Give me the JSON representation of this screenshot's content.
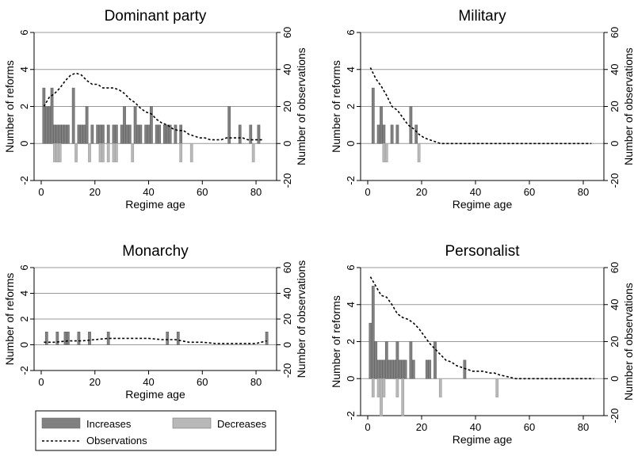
{
  "legend": {
    "items": [
      {
        "label": "Increases",
        "color": "#808080",
        "kind": "box"
      },
      {
        "label": "Decreases",
        "color": "#b8b8b8",
        "kind": "box"
      },
      {
        "label": "Observations",
        "color": "#000000",
        "kind": "dash"
      }
    ]
  },
  "colors": {
    "increase": "#808080",
    "decrease": "#b8b8b8",
    "grid": "#999999",
    "obs_line": "#000000"
  },
  "chart_data": [
    {
      "type": "bar",
      "title": "Dominant party",
      "xlabel": "Regime age",
      "ylabel": "Number of reforms",
      "y2label": "Number of observations",
      "xlim": [
        0,
        85
      ],
      "ylim": [
        -2,
        6
      ],
      "y2lim": [
        -20,
        60
      ],
      "xticks": [
        0,
        20,
        40,
        60,
        80
      ],
      "yticks": [
        -2,
        0,
        2,
        4,
        6
      ],
      "y2ticks": [
        -20,
        0,
        20,
        40,
        60
      ],
      "grid": true,
      "increases": {
        "x": [
          1,
          2,
          3,
          4,
          5,
          6,
          7,
          8,
          9,
          10,
          12,
          14,
          15,
          16,
          17,
          19,
          21,
          22,
          23,
          25,
          27,
          28,
          30,
          31,
          32,
          33,
          35,
          36,
          37,
          39,
          40,
          41,
          43,
          44,
          46,
          47,
          48,
          50,
          52,
          70,
          74,
          78,
          81
        ],
        "y": [
          3,
          2,
          2,
          3,
          1,
          1,
          1,
          1,
          1,
          1,
          3,
          1,
          1,
          1,
          2,
          1,
          1,
          1,
          1,
          1,
          1,
          1,
          1,
          2,
          1,
          1,
          2,
          1,
          1,
          1,
          1,
          2,
          1,
          1,
          1,
          1,
          1,
          1,
          1,
          2,
          1,
          1,
          1
        ]
      },
      "decreases": {
        "x": [
          5,
          6,
          7,
          13,
          18,
          22,
          23,
          25,
          27,
          28,
          34,
          52,
          56,
          79
        ],
        "y": [
          -1,
          -1,
          -1,
          -1,
          -1,
          -1,
          -1,
          -1,
          -1,
          -1,
          -1,
          -1,
          -1,
          -1
        ]
      },
      "observations": {
        "x": [
          1,
          3,
          5,
          7,
          9,
          11,
          13,
          15,
          17,
          19,
          21,
          23,
          25,
          27,
          29,
          31,
          33,
          35,
          37,
          39,
          41,
          43,
          45,
          47,
          49,
          51,
          53,
          55,
          57,
          59,
          61,
          63,
          65,
          67,
          69,
          71,
          73,
          75,
          77,
          79,
          81,
          83
        ],
        "y": [
          20,
          25,
          27,
          30,
          34,
          37,
          38,
          37,
          34,
          32,
          32,
          30,
          30,
          30,
          29,
          27,
          24,
          22,
          19,
          17,
          16,
          13,
          11,
          10,
          8,
          7,
          7,
          5,
          4,
          3,
          3,
          2,
          2,
          2,
          3,
          3,
          3,
          3,
          2,
          2,
          2,
          2
        ]
      }
    },
    {
      "type": "bar",
      "title": "Military",
      "xlabel": "Regime age",
      "ylabel": "Number of reforms",
      "y2label": "Number of observations",
      "xlim": [
        0,
        85
      ],
      "ylim": [
        -2,
        6
      ],
      "y2lim": [
        -20,
        60
      ],
      "xticks": [
        0,
        20,
        40,
        60,
        80
      ],
      "yticks": [
        -2,
        0,
        2,
        4,
        6
      ],
      "y2ticks": [
        -20,
        0,
        20,
        40,
        60
      ],
      "grid": true,
      "increases": {
        "x": [
          2,
          4,
          5,
          6,
          9,
          11,
          16,
          18
        ],
        "y": [
          3,
          1,
          2,
          1,
          1,
          1,
          2,
          1
        ]
      },
      "decreases": {
        "x": [
          6,
          7,
          19
        ],
        "y": [
          -1,
          -1,
          -1
        ]
      },
      "observations": {
        "x": [
          1,
          3,
          5,
          7,
          9,
          11,
          13,
          15,
          17,
          19,
          21,
          23,
          25,
          27,
          30,
          40,
          50,
          60,
          70,
          80,
          83
        ],
        "y": [
          41,
          35,
          31,
          26,
          20,
          18,
          14,
          10,
          8,
          5,
          3,
          2,
          1,
          0,
          0,
          0,
          0,
          0,
          0,
          0,
          0
        ]
      }
    },
    {
      "type": "bar",
      "title": "Monarchy",
      "xlabel": "Regime age",
      "ylabel": "Number of reforms",
      "y2label": "Number of observations",
      "xlim": [
        0,
        85
      ],
      "ylim": [
        -2,
        6
      ],
      "y2lim": [
        -20,
        60
      ],
      "xticks": [
        0,
        20,
        40,
        60,
        80
      ],
      "yticks": [
        -2,
        0,
        2,
        4,
        6
      ],
      "y2ticks": [
        -20,
        0,
        20,
        40,
        60
      ],
      "grid": true,
      "increases": {
        "x": [
          2,
          6,
          9,
          10,
          14,
          18,
          25,
          47,
          51,
          84
        ],
        "y": [
          1,
          1,
          1,
          1,
          1,
          1,
          1,
          1,
          1,
          1
        ]
      },
      "decreases": {
        "x": [],
        "y": []
      },
      "observations": {
        "x": [
          1,
          5,
          10,
          15,
          20,
          25,
          30,
          35,
          40,
          45,
          50,
          55,
          60,
          65,
          70,
          75,
          80,
          84
        ],
        "y": [
          2,
          2,
          3,
          3,
          4,
          5,
          5,
          5,
          5,
          4,
          4,
          2,
          2,
          1,
          1,
          1,
          1,
          3
        ]
      }
    },
    {
      "type": "bar",
      "title": "Personalist",
      "xlabel": "Regime age",
      "ylabel": "Number of reforms",
      "y2label": "Number of observations",
      "xlim": [
        0,
        85
      ],
      "ylim": [
        -2,
        6
      ],
      "y2lim": [
        -20,
        60
      ],
      "xticks": [
        0,
        20,
        40,
        60,
        80
      ],
      "yticks": [
        -2,
        0,
        2,
        4,
        6
      ],
      "y2ticks": [
        -20,
        0,
        20,
        40,
        60
      ],
      "grid": true,
      "increases": {
        "x": [
          1,
          2,
          3,
          4,
          5,
          6,
          7,
          8,
          9,
          10,
          11,
          12,
          13,
          14,
          16,
          17,
          22,
          23,
          25,
          36
        ],
        "y": [
          3,
          5,
          2,
          1,
          1,
          1,
          2,
          1,
          1,
          1,
          2,
          1,
          1,
          1,
          2,
          1,
          1,
          1,
          2,
          1
        ]
      },
      "decreases": {
        "x": [
          2,
          4,
          5,
          6,
          11,
          13,
          27,
          48
        ],
        "y": [
          -1,
          -1,
          -2,
          -1,
          -1,
          -2,
          -1,
          -1
        ]
      },
      "observations": {
        "x": [
          1,
          3,
          5,
          7,
          9,
          11,
          13,
          15,
          17,
          19,
          21,
          23,
          25,
          27,
          29,
          31,
          33,
          35,
          37,
          39,
          41,
          43,
          45,
          47,
          49,
          55,
          65,
          75,
          84
        ],
        "y": [
          55,
          50,
          45,
          44,
          40,
          35,
          33,
          32,
          30,
          27,
          23,
          19,
          16,
          13,
          10,
          9,
          7,
          6,
          5,
          4,
          4,
          4,
          3,
          3,
          2,
          0,
          0,
          0,
          0
        ]
      }
    }
  ]
}
